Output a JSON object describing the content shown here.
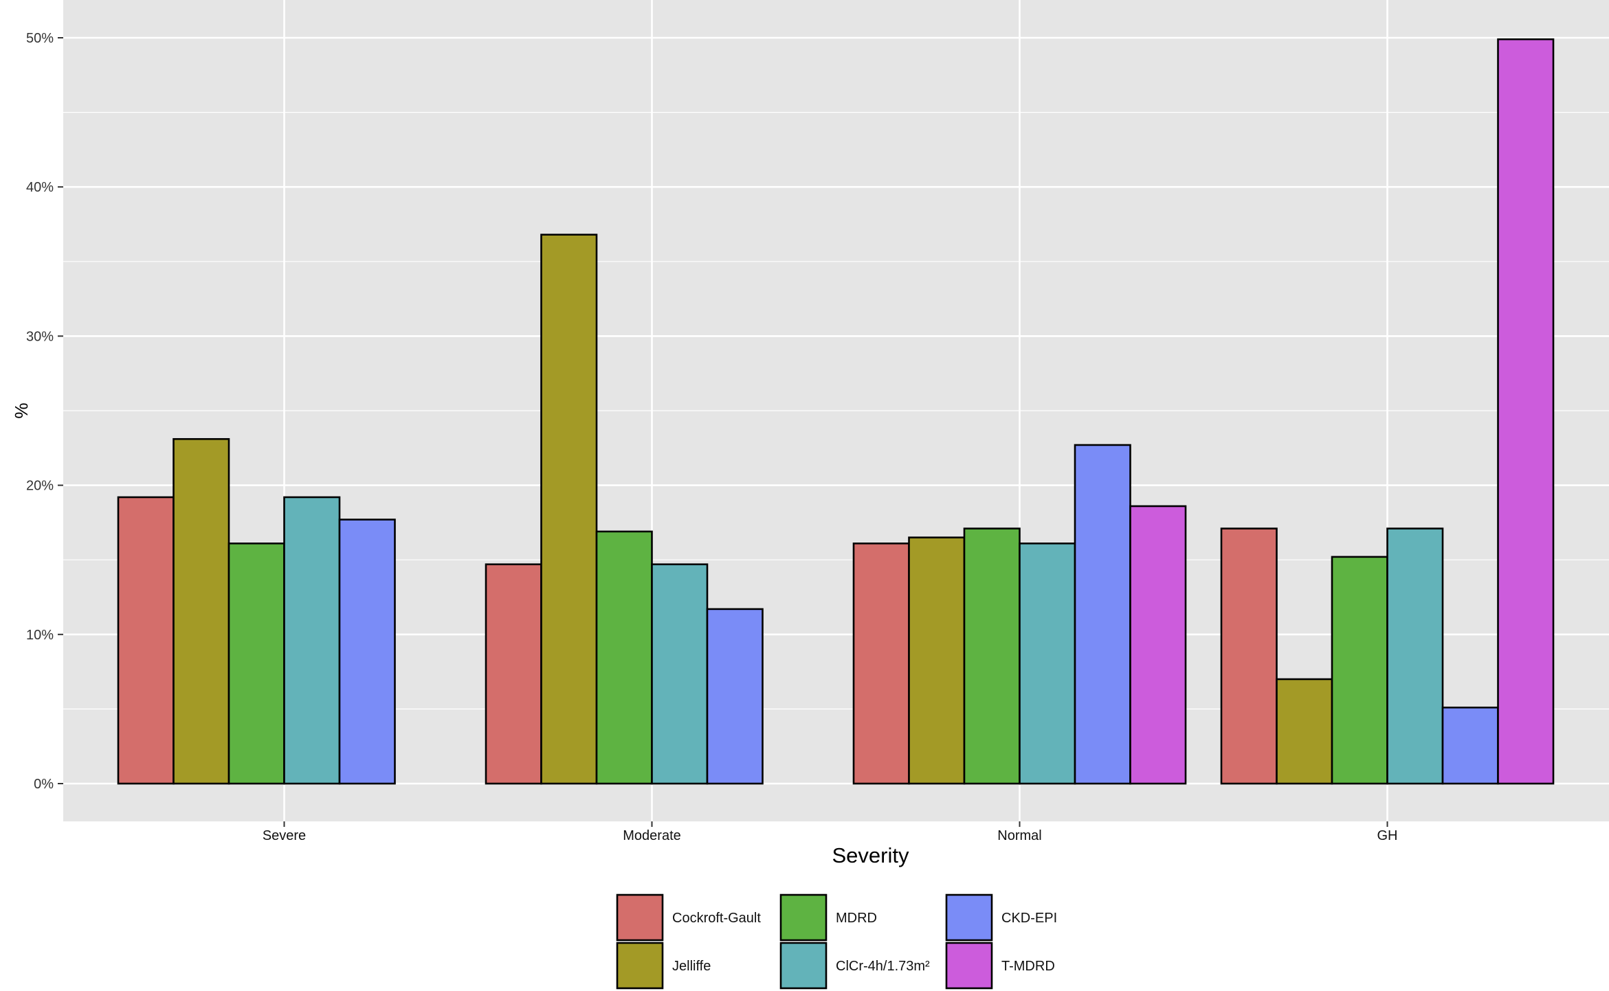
{
  "chart_data": {
    "type": "bar",
    "categories": [
      "Severe",
      "Moderate",
      "Normal",
      "GH"
    ],
    "series": [
      {
        "name": "Cockroft-Gault",
        "values": [
          19.2,
          14.7,
          16.1,
          17.1
        ],
        "color": "#D46E6B"
      },
      {
        "name": "Jelliffe",
        "values": [
          23.1,
          36.8,
          16.5,
          7.0
        ],
        "color": "#A39A26"
      },
      {
        "name": "MDRD",
        "values": [
          16.1,
          16.9,
          17.1,
          15.2
        ],
        "color": "#5EB342"
      },
      {
        "name": "ClCr-4h/1.73m²",
        "values": [
          19.2,
          14.7,
          16.1,
          17.1
        ],
        "color": "#63B3B9"
      },
      {
        "name": "CKD-EPI",
        "values": [
          17.7,
          11.7,
          22.7,
          5.1
        ],
        "color": "#7A8CF7"
      },
      {
        "name": "T-MDRD",
        "values": [
          0,
          0,
          18.6,
          49.9
        ],
        "color": "#CC5CDC"
      }
    ],
    "xlabel": "Severity",
    "ylabel": "%",
    "ylim": [
      0,
      50
    ],
    "yticks": [
      0,
      10,
      20,
      30,
      40,
      50
    ],
    "ytick_labels": [
      "0%",
      "10%",
      "20%",
      "30%",
      "40%",
      "50%"
    ],
    "grid": true,
    "legend_position": "bottom",
    "panel_background": "#E5E5E5",
    "grid_color": "#FFFFFF"
  }
}
